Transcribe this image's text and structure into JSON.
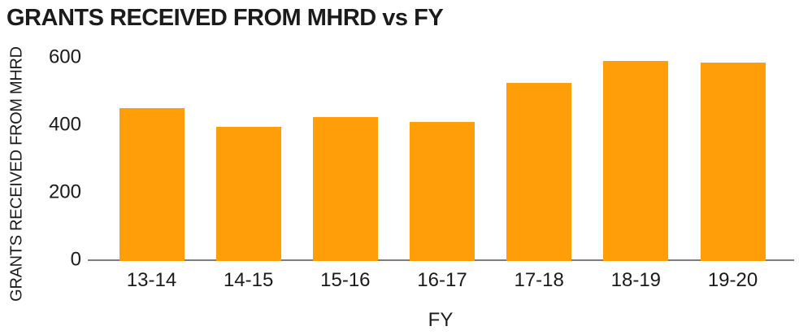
{
  "chart_data": {
    "type": "bar",
    "title": "GRANTS RECEIVED FROM MHRD vs FY",
    "xlabel": "FY",
    "ylabel": "GRANTS RECEIVED FROM MHRD",
    "categories": [
      "13-14",
      "14-15",
      "15-16",
      "16-17",
      "17-18",
      "18-19",
      "19-20"
    ],
    "values": [
      450,
      395,
      425,
      410,
      525,
      590,
      585
    ],
    "ylim": [
      0,
      600
    ],
    "yticks": [
      0,
      200,
      400,
      600
    ],
    "grid": false,
    "legend": "none",
    "bar_color": "#FF9E08",
    "axis_color": "#7D7D7D",
    "text_color": "#1B1B1B",
    "background": "#FFFFFF"
  }
}
